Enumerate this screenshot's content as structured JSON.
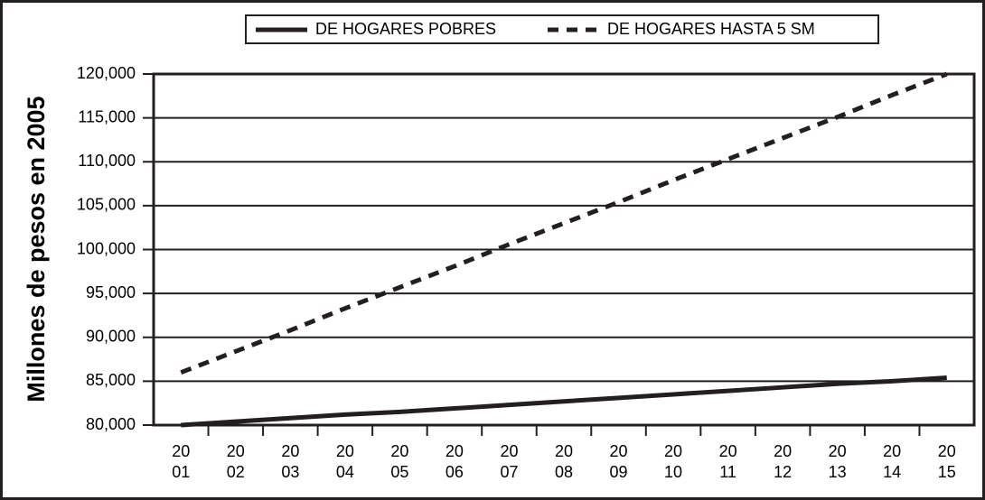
{
  "chart_data": {
    "type": "line",
    "y_label": "Millones de pesos en 2005",
    "categories": [
      "2001",
      "2002",
      "2003",
      "2004",
      "2005",
      "2006",
      "2007",
      "2008",
      "2009",
      "2010",
      "2011",
      "2012",
      "2013",
      "2014",
      "2015"
    ],
    "series": [
      {
        "name": "DE HOGARES POBRES",
        "color": "#231f20",
        "dash": "solid",
        "values": [
          80000,
          80400,
          80800,
          81200,
          81500,
          81900,
          82300,
          82700,
          83100,
          83500,
          83900,
          84300,
          84700,
          85000,
          85400
        ]
      },
      {
        "name": "DE HOGARES HASTA 5 SM",
        "color": "#231f20",
        "dash": "dashed",
        "values": [
          86000,
          88400,
          90800,
          93300,
          95700,
          98100,
          100600,
          103000,
          105400,
          107900,
          110300,
          112700,
          115100,
          117600,
          120000
        ]
      }
    ],
    "ylim": [
      80000,
      120000
    ],
    "yticks": [
      {
        "value": 80000,
        "label": "80,000"
      },
      {
        "value": 85000,
        "label": "85,000"
      },
      {
        "value": 90000,
        "label": "90,000"
      },
      {
        "value": 95000,
        "label": "95,000"
      },
      {
        "value": 100000,
        "label": "100,000"
      },
      {
        "value": 105000,
        "label": "105,000"
      },
      {
        "value": 110000,
        "label": "110,000"
      },
      {
        "value": 115000,
        "label": "115,000"
      },
      {
        "value": 120000,
        "label": "120,000"
      }
    ],
    "grid": true,
    "legend": "top"
  }
}
